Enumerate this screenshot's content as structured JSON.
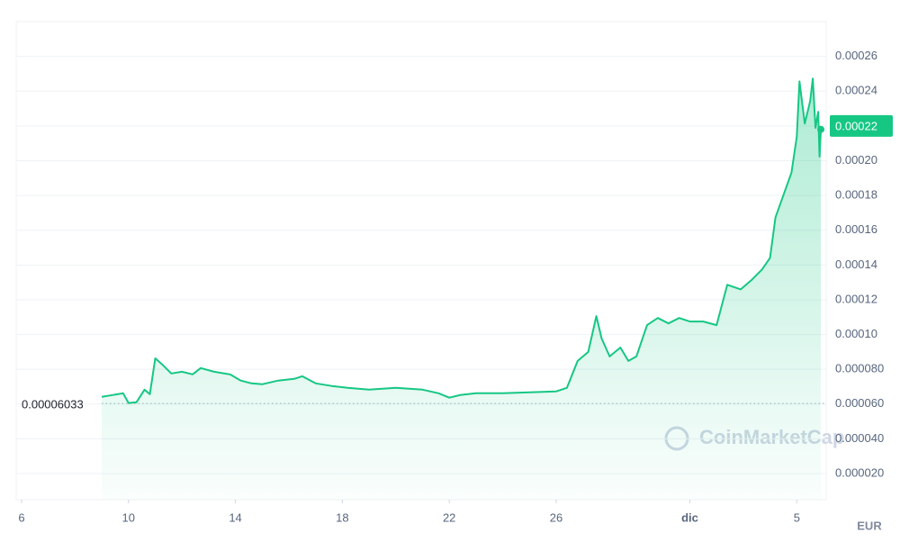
{
  "chart_data": {
    "type": "area_line",
    "currency": "EUR",
    "watermark": "CoinMarketCap",
    "color": "#16c784",
    "reference_line": 6.033e-05,
    "current_price": 0.00022,
    "grid": true,
    "xlim": [
      5.8,
      36.1
    ],
    "xticks": [
      6,
      10,
      14,
      18,
      22,
      26,
      {
        "value": 31,
        "label": "dic"
      },
      {
        "value": 35,
        "label": "5"
      }
    ],
    "ylim": [
      5e-06,
      0.00028
    ],
    "yticks": [
      {
        "value": 2e-05,
        "label": "0.000020"
      },
      {
        "value": 4e-05,
        "label": "0.000040"
      },
      {
        "value": 6e-05,
        "label": "0.000060"
      },
      {
        "value": 8e-05,
        "label": "0.000080"
      },
      {
        "value": 0.0001,
        "label": "0.00010"
      },
      0.00012,
      0.00014,
      0.00016,
      0.00018,
      {
        "value": 0.0002,
        "label": "0.00020"
      },
      0.00022,
      0.00024,
      0.00026
    ],
    "x": [
      9.0,
      9.4,
      9.8,
      10.0,
      10.3,
      10.6,
      10.8,
      11.0,
      11.3,
      11.6,
      12.0,
      12.4,
      12.7,
      13.2,
      13.8,
      14.2,
      14.6,
      15.0,
      15.6,
      16.2,
      16.5,
      17.0,
      17.6,
      18.2,
      19.0,
      20.0,
      21.0,
      21.6,
      22.0,
      22.4,
      23.0,
      24.0,
      25.0,
      26.0,
      26.4,
      26.8,
      27.2,
      27.5,
      27.7,
      28.0,
      28.4,
      28.7,
      29.0,
      29.4,
      29.8,
      30.2,
      30.6,
      31.0,
      31.5,
      32.0,
      32.4,
      32.9,
      33.3,
      33.7,
      34.0,
      34.2,
      34.5,
      34.8,
      35.0,
      35.1,
      35.3,
      35.5,
      35.6,
      35.7,
      35.8,
      35.85,
      35.9
    ],
    "values": [
      6.42e-05,
      6.52e-05,
      6.62e-05,
      6.06e-05,
      6.11e-05,
      6.83e-05,
      6.57e-05,
      8.63e-05,
      8.22e-05,
      7.76e-05,
      7.86e-05,
      7.71e-05,
      8.07e-05,
      7.86e-05,
      7.71e-05,
      7.35e-05,
      7.19e-05,
      7.14e-05,
      7.35e-05,
      7.45e-05,
      7.6e-05,
      7.19e-05,
      7.04e-05,
      6.93e-05,
      6.83e-05,
      6.93e-05,
      6.83e-05,
      6.62e-05,
      6.37e-05,
      6.52e-05,
      6.62e-05,
      6.62e-05,
      6.68e-05,
      6.73e-05,
      6.93e-05,
      8.48e-05,
      9e-05,
      0.0001106,
      9.77e-05,
      8.74e-05,
      9.25e-05,
      8.48e-05,
      8.74e-05,
      0.0001054,
      0.0001095,
      0.0001064,
      0.0001095,
      0.0001075,
      0.0001075,
      0.0001054,
      0.0001286,
      0.000126,
      0.0001312,
      0.0001374,
      0.0001441,
      0.0001673,
      0.0001802,
      0.0001931,
      0.0002137,
      0.0002456,
      0.0002214,
      0.0002343,
      0.0002472,
      0.0002189,
      0.0002281,
      0.0002023,
      0.000218
    ]
  }
}
